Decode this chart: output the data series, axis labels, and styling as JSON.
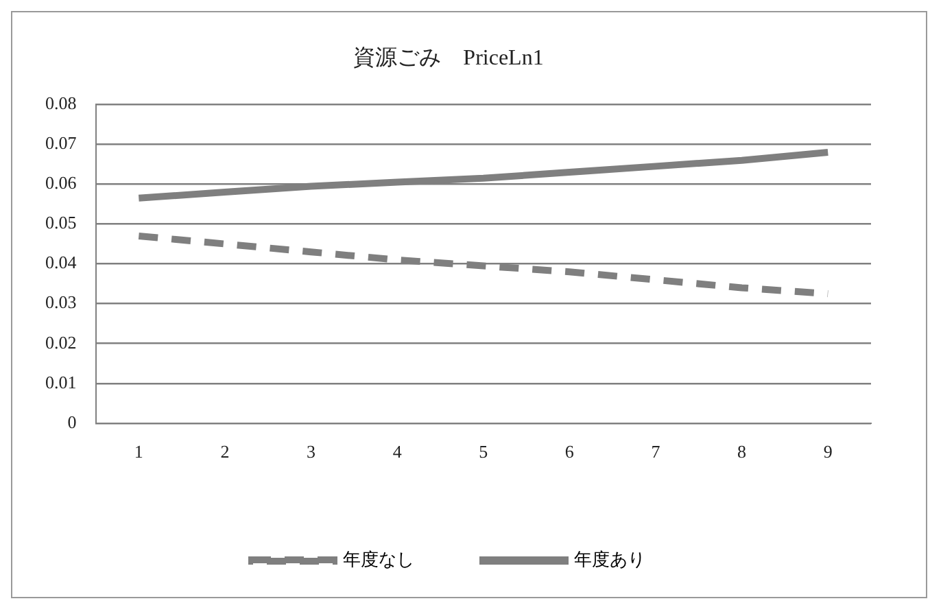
{
  "chart_data": {
    "type": "line",
    "title": "資源ごみ　PriceLn1",
    "categories": [
      "1",
      "2",
      "3",
      "4",
      "5",
      "6",
      "7",
      "8",
      "9"
    ],
    "series": [
      {
        "name": "年度なし",
        "color": "#7f7f7f",
        "line_style": "dashed",
        "values": [
          0.047,
          0.045,
          0.043,
          0.041,
          0.0395,
          0.038,
          0.036,
          0.034,
          0.0325
        ]
      },
      {
        "name": "年度あり",
        "color": "#7f7f7f",
        "line_style": "solid",
        "values": [
          0.0565,
          0.058,
          0.0595,
          0.0605,
          0.0615,
          0.063,
          0.0645,
          0.066,
          0.068
        ]
      }
    ],
    "ylim": [
      0,
      0.08
    ],
    "yticks": [
      0,
      0.01,
      0.02,
      0.03,
      0.04,
      0.05,
      0.06,
      0.07,
      0.08
    ],
    "grid": "y",
    "legend": "bottom",
    "marker": "none"
  }
}
